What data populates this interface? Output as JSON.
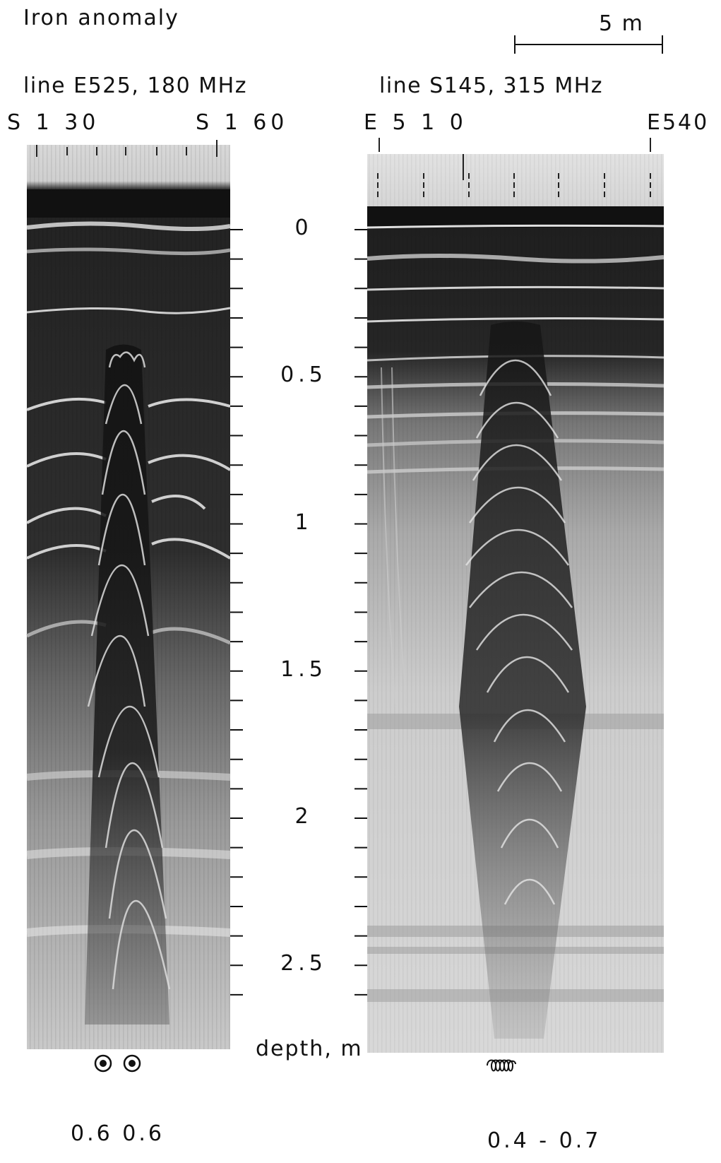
{
  "figure": {
    "title": "Iron anomaly",
    "scale_bar": {
      "label": "5 m"
    },
    "left_profile": {
      "line_label": "line E525, 180 MHz",
      "start_label": "S 1 30",
      "end_label": "S 1 60",
      "target_values": [
        "0.6",
        "0.6"
      ],
      "target_label": "0.6   0.6"
    },
    "right_profile": {
      "line_label": "line S145, 315 MHz",
      "start_label": "E 5 1 0",
      "end_label": "E540",
      "target_label": "0.4 - 0.7"
    },
    "depth_axis": {
      "title": "depth, m",
      "tick_labels": [
        "0",
        "0.5",
        "1",
        "1.5",
        "2",
        "2.5"
      ],
      "ticks": [
        0,
        0.5,
        1,
        1.5,
        2,
        2.5
      ],
      "minor_step": 0.1
    },
    "icons": [
      "bullseye-icon",
      "spring-coil-icon"
    ]
  }
}
